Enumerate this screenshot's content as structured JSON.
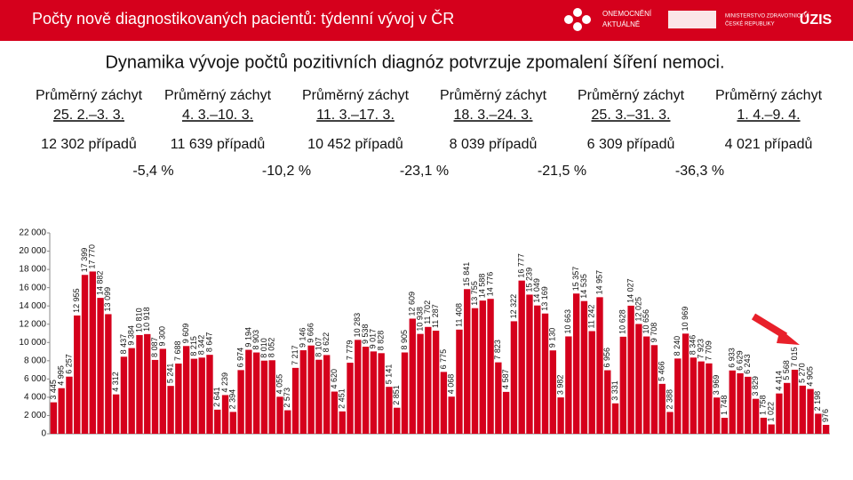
{
  "header": {
    "title": "Počty nově diagnostikovaných pacientů: týdenní vývoj v ČR",
    "logos": [
      "ONEMOCNĚNÍ",
      "AKTUÁLNĚ",
      "MINISTERSTVO ZDRAVOTNICTVÍ",
      "ČESKÉ REPUBLIKY",
      "ÚZIS"
    ]
  },
  "subtitle": "Dynamika vývoje počtů pozitivních diagnóz potvrzuje zpomalení šíření nemoci.",
  "weeks": [
    {
      "label": "Průměrný záchyt",
      "period": "25. 2.–3. 3.",
      "cases": "12 302 případů"
    },
    {
      "label": "Průměrný záchyt",
      "period": "4. 3.–10. 3.",
      "cases": "11 639 případů"
    },
    {
      "label": "Průměrný záchyt",
      "period": "11. 3.–17. 3.",
      "cases": "10 452 případů"
    },
    {
      "label": "Průměrný záchyt",
      "period": "18. 3.–24. 3.",
      "cases": "8 039 případů"
    },
    {
      "label": "Průměrný záchyt",
      "period": "25. 3.–31. 3.",
      "cases": "6 309 případů"
    },
    {
      "label": "Průměrný záchyt",
      "period": "1. 4.–9. 4.",
      "cases": "4 021 případů"
    }
  ],
  "changes": [
    "-5,4 %",
    "-10,2 %",
    "-23,1 %",
    "-21,5 %",
    "-36,3 %"
  ],
  "chart_data": {
    "type": "bar",
    "color": "#d5001c",
    "categories": [
      null,
      null,
      null,
      null,
      null,
      null,
      null,
      null,
      null,
      null,
      null,
      null,
      null,
      null,
      null,
      null,
      null,
      null,
      null,
      null,
      null,
      null,
      null,
      null,
      null,
      null,
      null,
      null,
      null,
      null,
      null,
      null,
      null,
      null,
      null,
      null,
      null,
      null,
      null,
      null,
      null,
      null,
      null,
      null,
      null,
      null,
      null,
      null,
      null,
      null,
      null,
      null,
      null,
      null,
      null,
      null,
      null,
      null,
      null,
      null,
      null,
      null,
      null,
      null,
      null,
      null,
      null,
      null,
      null,
      null,
      null,
      null,
      null,
      null,
      null,
      null,
      null,
      null,
      null,
      null,
      null,
      null,
      null,
      null,
      null,
      null,
      null,
      null,
      null,
      null,
      null,
      null,
      null,
      null,
      null,
      null,
      null,
      null,
      null,
      null
    ],
    "values": [
      3445,
      4995,
      6257,
      12955,
      17399,
      17770,
      14882,
      13099,
      4312,
      8437,
      9384,
      10810,
      10918,
      8087,
      9300,
      5241,
      7688,
      9609,
      8215,
      8342,
      8647,
      2641,
      4239,
      2394,
      6974,
      9194,
      8903,
      8010,
      8052,
      4055,
      2573,
      7217,
      9146,
      9666,
      8107,
      8622,
      4620,
      2451,
      7779,
      10283,
      9538,
      9017,
      8828,
      5141,
      2851,
      8905,
      12609,
      10938,
      11702,
      11287,
      6775,
      4068,
      11408,
      15841,
      13755,
      14588,
      14776,
      7823,
      4587,
      12322,
      16777,
      15239,
      14049,
      13169,
      9130,
      3982,
      10663,
      15357,
      14535,
      11242,
      14957,
      6956,
      3331,
      10628,
      14027,
      12025,
      10656,
      9708,
      5466,
      2388,
      8240,
      10969,
      8346,
      7923,
      7709,
      3969,
      1748,
      6933,
      6629,
      6243,
      3829,
      1758,
      1022,
      4414,
      5568,
      7015,
      5270,
      4905,
      2198,
      976
    ],
    "value_labels": [
      "3 445",
      "4 995",
      "6 257",
      "12 955",
      "17 399",
      "17 770",
      "14 882",
      "13 099",
      "4 312",
      "8 437",
      "9 384",
      "10 810",
      "10 918",
      "8 087",
      "9 300",
      "5 241",
      "7 688",
      "9 609",
      "8 215",
      "8 342",
      "8 647",
      "2 641",
      "4 239",
      "2 394",
      "6 974",
      "9 194",
      "8 903",
      "8 010",
      "8 052",
      "4 055",
      "2 573",
      "7 217",
      "9 146",
      "9 666",
      "8 107",
      "8 622",
      "4 620",
      "2 451",
      "7 779",
      "10 283",
      "9 538",
      "9 017",
      "8 828",
      "5 141",
      "2 851",
      "8 905",
      "12 609",
      "10 938",
      "11 702",
      "11 287",
      "6 775",
      "4 068",
      "11 408",
      "15 841",
      "13 755",
      "14 588",
      "14 776",
      "7 823",
      "4 587",
      "12 322",
      "16 777",
      "15 239",
      "14 049",
      "13 169",
      "9 130",
      "3 982",
      "10 663",
      "15 357",
      "14 535",
      "11 242",
      "14 957",
      "6 956",
      "3 331",
      "10 628",
      "14 027",
      "12 025",
      "10 656",
      "9 708",
      "5 466",
      "2 388",
      "8 240",
      "10 969",
      "8 346",
      "7 923",
      "7 709",
      "3 969",
      "1 748",
      "6 933",
      "6 629",
      "6 243",
      "3 829",
      "1 758",
      "1 022",
      "4 414",
      "5 568",
      "7 015",
      "5 270",
      "4 905",
      "2 198",
      "976"
    ],
    "ylim": [
      0,
      22000
    ],
    "yticks": [
      0,
      {
        "value": 2000,
        "label": "2 000"
      },
      {
        "value": 4000,
        "label": "4 000"
      },
      {
        "value": 6000,
        "label": "6 000"
      },
      {
        "value": 8000,
        "label": "8 000"
      },
      {
        "value": 10000,
        "label": "10 000"
      },
      {
        "value": 12000,
        "label": "12 000"
      },
      {
        "value": 14000,
        "label": "14 000"
      },
      {
        "value": 16000,
        "label": "16 000"
      },
      {
        "value": 18000,
        "label": "18 000"
      },
      {
        "value": 20000,
        "label": "20 000"
      },
      {
        "value": 22000,
        "label": "22 000"
      }
    ]
  }
}
